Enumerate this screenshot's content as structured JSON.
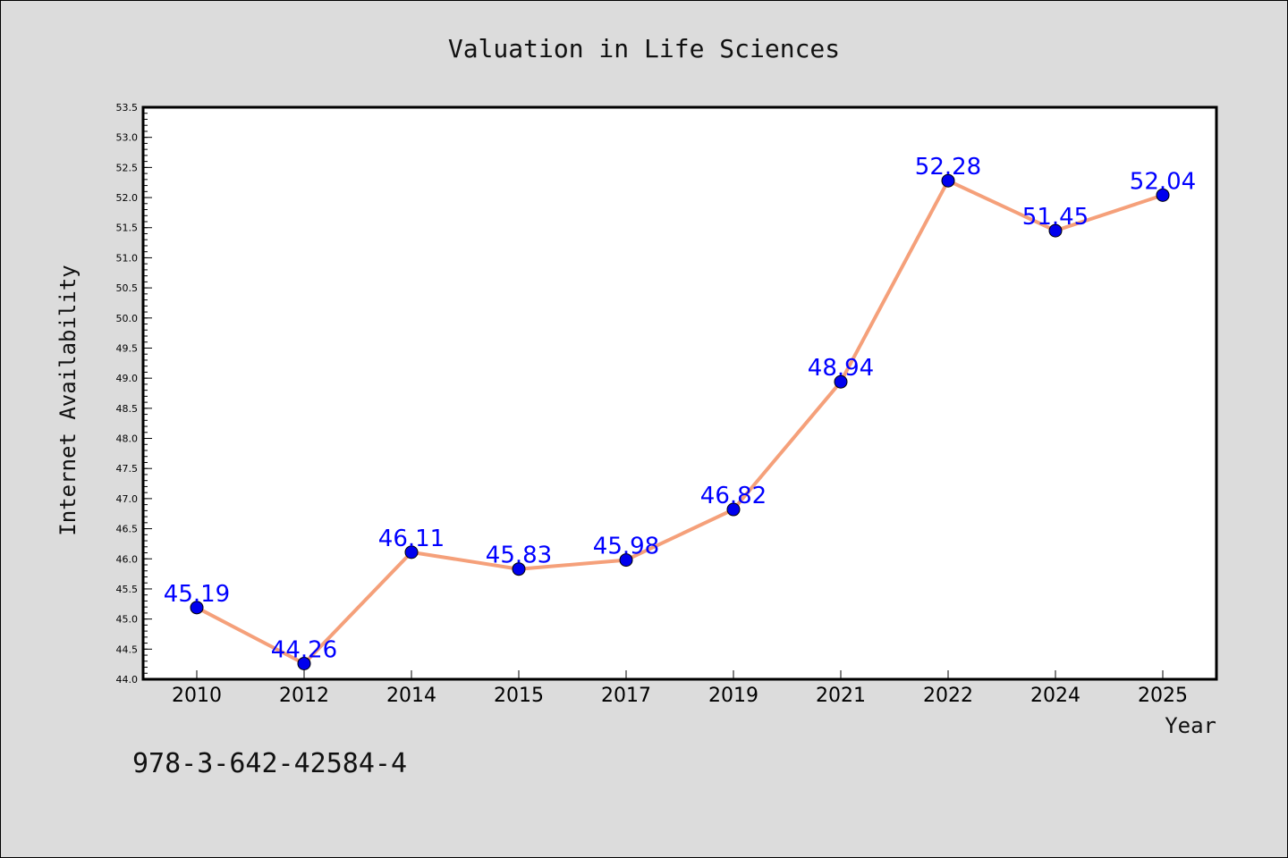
{
  "chart_data": {
    "type": "line",
    "title": "Valuation in Life Sciences",
    "xlabel": "Year",
    "ylabel": "Internet Availability",
    "categories": [
      "2010",
      "2012",
      "2014",
      "2015",
      "2017",
      "2019",
      "2021",
      "2022",
      "2024",
      "2025"
    ],
    "series": [
      {
        "values": [
          45.19,
          44.26,
          46.11,
          45.83,
          45.98,
          46.82,
          48.94,
          52.28,
          51.45,
          52.04
        ],
        "data_labels": [
          "45.19",
          "44.26",
          "46.11",
          "45.83",
          "45.98",
          "46.82",
          "48.94",
          "52.28",
          "51.45",
          "52.04"
        ],
        "line_color": "#f5a07a",
        "marker_color": "#0000ee"
      }
    ],
    "ylim": [
      44.0,
      53.5
    ],
    "ytick_values": [
      44.0,
      44.5,
      45.0,
      45.5,
      46.0,
      46.5,
      47.0,
      47.5,
      48.0,
      48.5,
      49.0,
      49.5,
      50.0,
      50.5,
      51.0,
      51.5,
      52.0,
      52.5,
      53.0,
      53.5
    ],
    "ytick_labels": [
      "44.0",
      "44.5",
      "45.0",
      "45.5",
      "46.0",
      "46.5",
      "47.0",
      "47.5",
      "48.0",
      "48.5",
      "49.0",
      "49.5",
      "50.0",
      "50.5",
      "51.0",
      "51.5",
      "52.0",
      "52.5",
      "53.0",
      "53.5"
    ],
    "grid": false,
    "data_label_color": "#0000ff",
    "background_color": "#dcdcdc",
    "plot_background_color": "#ffffff"
  },
  "footer": {
    "isbn": "978-3-642-42584-4"
  }
}
